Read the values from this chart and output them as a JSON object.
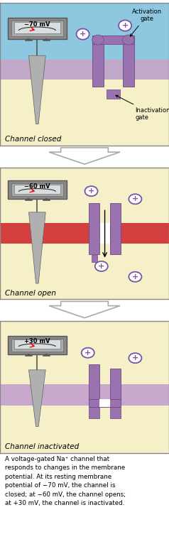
{
  "bg_yellow": "#f5f0c8",
  "blue_extra": "#8ec8e0",
  "red_mem": "#d44040",
  "purple_mem": "#c8a8cc",
  "channel_color": "#9b72b0",
  "channel_edge": "#6a4a80",
  "white": "#ffffff",
  "gray_vm_outer": "#909090",
  "gray_vm_inner": "#c8c8c8",
  "gray_vm_screen": "#e0e0e0",
  "electrode_fill": "#b0b0b0",
  "electrode_edge": "#606060",
  "ion_edge": "#7755aa",
  "voltages": [
    "−70 mV",
    "−60 mV",
    "+30 mV"
  ],
  "labels": [
    "Channel closed",
    "Channel open",
    "Channel inactivated"
  ],
  "annotation_activation": "Activation\ngate",
  "annotation_inactivation": "Inactivation\ngate",
  "caption": "A voltage-gated Na⁺ channel that\nresponds to changes in the membrane\npotential. At its resting membrane\npotential of −70 mV, the channel is\nclosed; at −60 mV, the channel opens;\nat +30 mV, the channel is inactivated."
}
